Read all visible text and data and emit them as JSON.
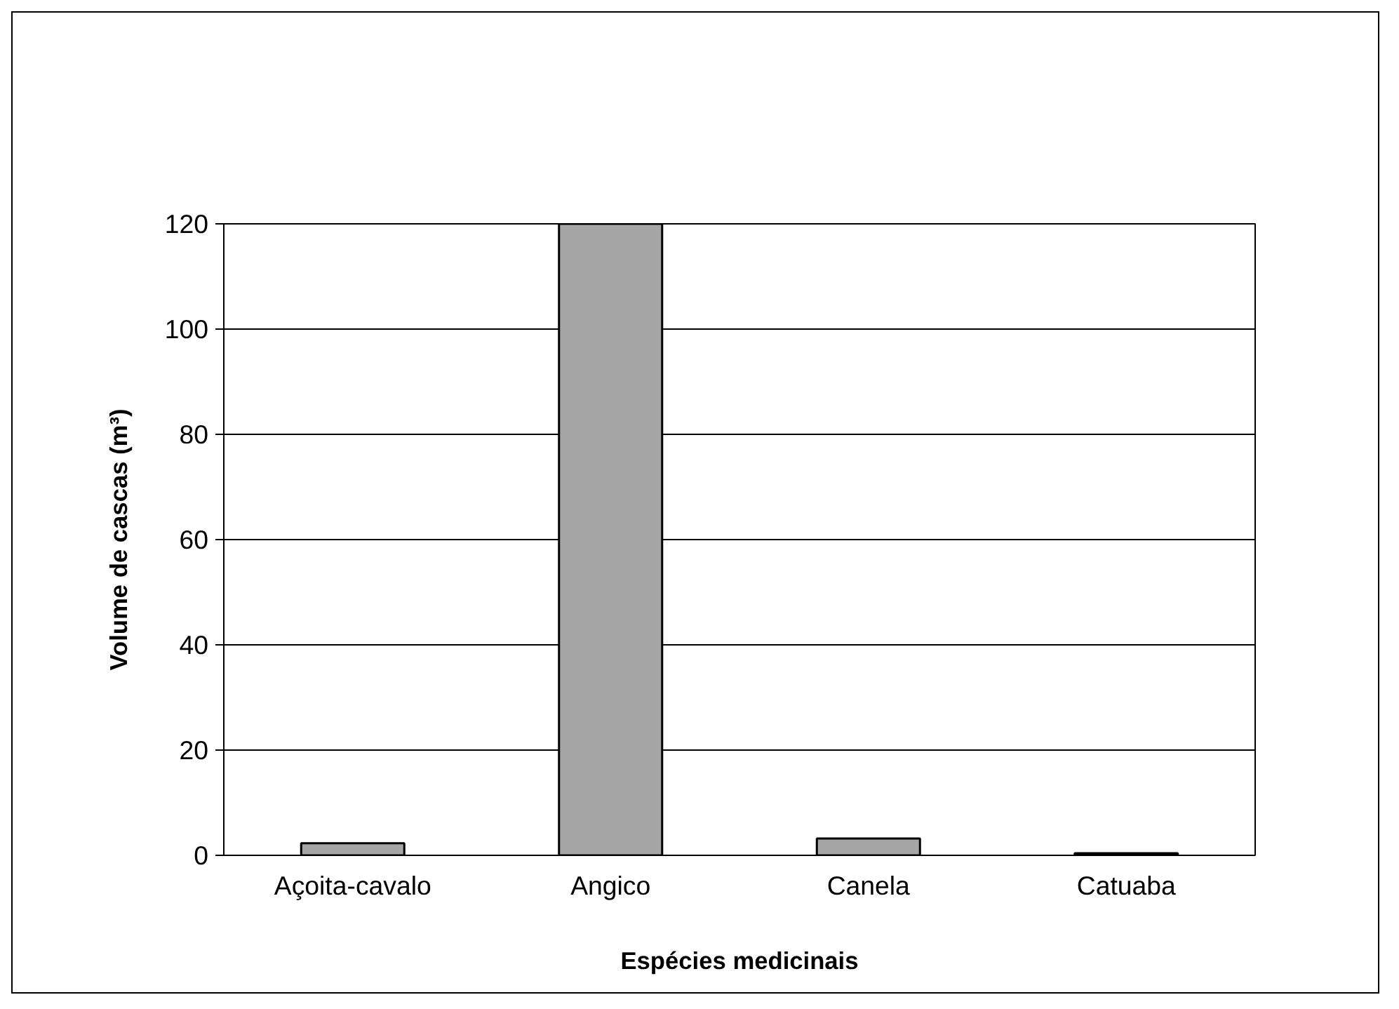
{
  "chart_data": {
    "type": "bar",
    "xlabel": "Espécies medicinais",
    "ylabel": "Volume de cascas (m³)",
    "categories": [
      "Açoita-cavalo",
      "Angico",
      "Canela",
      "Catuaba"
    ],
    "values": [
      2.3,
      120,
      3.2,
      0.4
    ],
    "color": "#a6a6a6",
    "ylim": [
      0,
      120
    ],
    "yticks": [
      0,
      20,
      40,
      60,
      80,
      100,
      120
    ],
    "grid": "y"
  }
}
